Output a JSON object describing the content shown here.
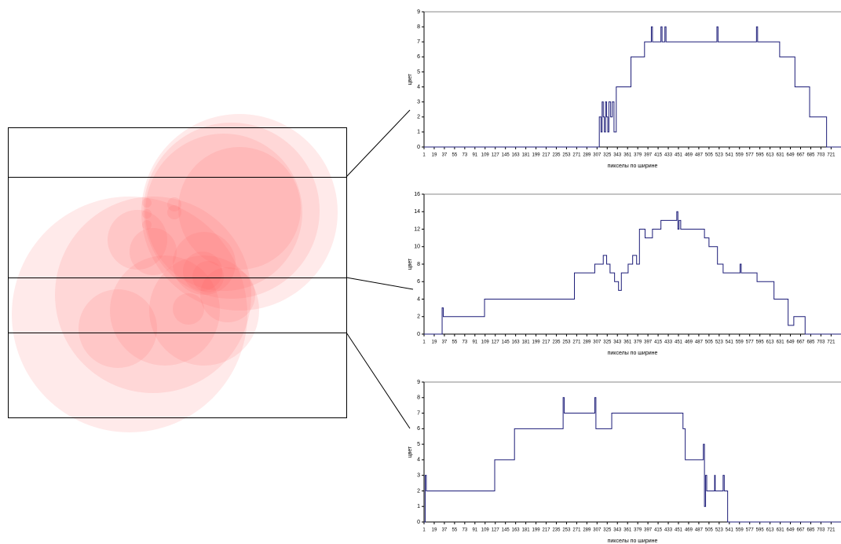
{
  "chart_data": [
    {
      "type": "line",
      "y_label": "цвет",
      "x_label": "пикселы по ширине",
      "xlim": [
        1,
        745
      ],
      "ylim": [
        0,
        9
      ],
      "yticks": [
        0,
        1,
        2,
        3,
        4,
        5,
        6,
        7,
        8,
        9
      ],
      "xticks": [
        1,
        19,
        37,
        55,
        73,
        91,
        109,
        127,
        145,
        163,
        181,
        199,
        217,
        235,
        253,
        271,
        289,
        307,
        325,
        343,
        361,
        379,
        397,
        415,
        433,
        451,
        469,
        487,
        505,
        523,
        541,
        559,
        577,
        595,
        613,
        631,
        649,
        667,
        685,
        703,
        721
      ],
      "series": [
        {
          "color": "#1c1c78",
          "x": [
            1,
            311,
            311,
            314,
            314,
            316,
            316,
            318,
            318,
            320,
            320,
            322,
            322,
            324,
            324,
            326,
            326,
            328,
            328,
            331,
            331,
            334,
            334,
            337,
            337,
            341,
            341,
            367,
            367,
            391,
            391,
            403,
            403,
            405,
            405,
            420,
            420,
            422,
            422,
            427,
            427,
            429,
            429,
            519,
            519,
            521,
            521,
            589,
            589,
            591,
            591,
            630,
            630,
            657,
            657,
            683,
            683,
            713,
            713,
            745
          ],
          "values": [
            0,
            0,
            2,
            2,
            1,
            1,
            3,
            3,
            2,
            2,
            1,
            1,
            3,
            3,
            2,
            2,
            1,
            1,
            3,
            3,
            2,
            2,
            3,
            3,
            1,
            1,
            4,
            4,
            6,
            6,
            7,
            7,
            8,
            8,
            7,
            7,
            8,
            8,
            7,
            7,
            8,
            8,
            7,
            7,
            8,
            8,
            7,
            7,
            8,
            8,
            7,
            7,
            6,
            6,
            4,
            4,
            2,
            2,
            0,
            0
          ]
        }
      ]
    },
    {
      "type": "line",
      "y_label": "цвет",
      "x_label": "пикселы по ширине",
      "xlim": [
        1,
        745
      ],
      "ylim": [
        0,
        16
      ],
      "yticks": [
        0,
        2,
        4,
        6,
        8,
        10,
        12,
        14,
        16
      ],
      "xticks": [
        1,
        19,
        37,
        55,
        73,
        91,
        109,
        127,
        145,
        163,
        181,
        199,
        217,
        235,
        253,
        271,
        289,
        307,
        325,
        343,
        361,
        379,
        397,
        415,
        433,
        451,
        469,
        487,
        505,
        523,
        541,
        559,
        577,
        595,
        613,
        631,
        649,
        667,
        685,
        703,
        721
      ],
      "series": [
        {
          "color": "#1c1c78",
          "x": [
            1,
            33,
            33,
            35,
            35,
            108,
            108,
            267,
            267,
            303,
            303,
            318,
            318,
            324,
            324,
            330,
            330,
            338,
            338,
            345,
            345,
            350,
            350,
            362,
            362,
            370,
            370,
            377,
            377,
            382,
            382,
            392,
            392,
            405,
            405,
            420,
            420,
            448,
            448,
            450,
            450,
            452,
            452,
            455,
            455,
            497,
            497,
            505,
            505,
            520,
            520,
            530,
            530,
            560,
            560,
            562,
            562,
            590,
            590,
            620,
            620,
            645,
            645,
            655,
            655,
            675,
            675,
            745
          ],
          "values": [
            0,
            0,
            3,
            3,
            2,
            2,
            4,
            4,
            7,
            7,
            8,
            8,
            9,
            9,
            8,
            8,
            7,
            7,
            6,
            6,
            5,
            5,
            7,
            7,
            8,
            8,
            9,
            9,
            8,
            8,
            12,
            12,
            11,
            11,
            12,
            12,
            13,
            13,
            14,
            14,
            12,
            12,
            13,
            13,
            12,
            12,
            11,
            11,
            10,
            10,
            8,
            8,
            7,
            7,
            8,
            8,
            7,
            7,
            6,
            6,
            4,
            4,
            1,
            1,
            2,
            2,
            0,
            0
          ]
        }
      ]
    },
    {
      "type": "line",
      "y_label": "цвет",
      "x_label": "пикселы по ширине",
      "xlim": [
        1,
        745
      ],
      "ylim": [
        0,
        9
      ],
      "yticks": [
        0,
        1,
        2,
        3,
        4,
        5,
        6,
        7,
        8,
        9
      ],
      "xticks": [
        1,
        19,
        37,
        55,
        73,
        91,
        109,
        127,
        145,
        163,
        181,
        199,
        217,
        235,
        253,
        271,
        289,
        307,
        325,
        343,
        361,
        379,
        397,
        415,
        433,
        451,
        469,
        487,
        505,
        523,
        541,
        559,
        577,
        595,
        613,
        631,
        649,
        667,
        685,
        703,
        721
      ],
      "series": [
        {
          "color": "#1c1c78",
          "x": [
            1,
            3,
            3,
            5,
            5,
            126,
            126,
            161,
            161,
            247,
            247,
            249,
            249,
            303,
            303,
            305,
            305,
            333,
            333,
            459,
            459,
            463,
            463,
            495,
            495,
            497,
            497,
            499,
            499,
            501,
            501,
            515,
            515,
            516,
            516,
            530,
            530,
            532,
            532,
            538,
            538,
            745
          ],
          "values": [
            0,
            0,
            3,
            3,
            2,
            2,
            4,
            4,
            6,
            6,
            8,
            8,
            7,
            7,
            8,
            8,
            6,
            6,
            7,
            7,
            6,
            6,
            4,
            4,
            5,
            5,
            1,
            1,
            3,
            3,
            2,
            2,
            3,
            3,
            2,
            2,
            3,
            3,
            2,
            2,
            0,
            0
          ]
        }
      ]
    }
  ]
}
